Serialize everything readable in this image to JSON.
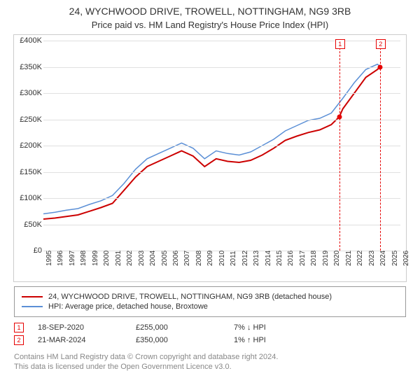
{
  "title_line1": "24, WYCHWOOD DRIVE, TROWELL, NOTTINGHAM, NG9 3RB",
  "title_line2": "Price paid vs. HM Land Registry's House Price Index (HPI)",
  "chart": {
    "type": "line",
    "background_color": "#ffffff",
    "grid_color": "#e0e0e0",
    "border_color": "#cccccc",
    "x_axis": {
      "min": 1995,
      "max": 2026,
      "tick_step": 1,
      "label_fontsize": 10,
      "label_rotation": -90
    },
    "y_axis": {
      "min": 0,
      "max": 400000,
      "tick_step": 50000,
      "tick_labels": [
        "£0",
        "£50K",
        "£100K",
        "£150K",
        "£200K",
        "£250K",
        "£300K",
        "£350K",
        "£400K"
      ],
      "label_fontsize": 11
    },
    "series": [
      {
        "name": "24, WYCHWOOD DRIVE, TROWELL, NOTTINGHAM, NG9 3RB (detached house)",
        "color": "#cc0000",
        "line_width": 2,
        "data": [
          [
            1995,
            60000
          ],
          [
            1996,
            62000
          ],
          [
            1997,
            65000
          ],
          [
            1998,
            68000
          ],
          [
            1999,
            75000
          ],
          [
            2000,
            82000
          ],
          [
            2001,
            90000
          ],
          [
            2002,
            115000
          ],
          [
            2003,
            140000
          ],
          [
            2004,
            160000
          ],
          [
            2005,
            170000
          ],
          [
            2006,
            180000
          ],
          [
            2007,
            190000
          ],
          [
            2008,
            180000
          ],
          [
            2009,
            160000
          ],
          [
            2010,
            175000
          ],
          [
            2011,
            170000
          ],
          [
            2012,
            168000
          ],
          [
            2013,
            172000
          ],
          [
            2014,
            182000
          ],
          [
            2015,
            195000
          ],
          [
            2016,
            210000
          ],
          [
            2017,
            218000
          ],
          [
            2018,
            225000
          ],
          [
            2019,
            230000
          ],
          [
            2020,
            240000
          ],
          [
            2020.7,
            255000
          ],
          [
            2021,
            270000
          ],
          [
            2022,
            300000
          ],
          [
            2023,
            330000
          ],
          [
            2024,
            345000
          ],
          [
            2024.22,
            350000
          ]
        ]
      },
      {
        "name": "HPI: Average price, detached house, Broxtowe",
        "color": "#5b8fd6",
        "line_width": 1.5,
        "data": [
          [
            1995,
            70000
          ],
          [
            1996,
            73000
          ],
          [
            1997,
            77000
          ],
          [
            1998,
            80000
          ],
          [
            1999,
            88000
          ],
          [
            2000,
            95000
          ],
          [
            2001,
            105000
          ],
          [
            2002,
            128000
          ],
          [
            2003,
            155000
          ],
          [
            2004,
            175000
          ],
          [
            2005,
            185000
          ],
          [
            2006,
            195000
          ],
          [
            2007,
            205000
          ],
          [
            2008,
            195000
          ],
          [
            2009,
            175000
          ],
          [
            2010,
            190000
          ],
          [
            2011,
            185000
          ],
          [
            2012,
            182000
          ],
          [
            2013,
            188000
          ],
          [
            2014,
            200000
          ],
          [
            2015,
            212000
          ],
          [
            2016,
            228000
          ],
          [
            2017,
            238000
          ],
          [
            2018,
            248000
          ],
          [
            2019,
            252000
          ],
          [
            2020,
            262000
          ],
          [
            2021,
            290000
          ],
          [
            2022,
            320000
          ],
          [
            2023,
            345000
          ],
          [
            2024,
            355000
          ],
          [
            2024.3,
            350000
          ]
        ]
      }
    ],
    "markers": [
      {
        "num": "1",
        "x": 2020.7,
        "y": 255000
      },
      {
        "num": "2",
        "x": 2024.22,
        "y": 350000
      }
    ]
  },
  "legend": {
    "items": [
      {
        "color": "#cc0000",
        "label": "24, WYCHWOOD DRIVE, TROWELL, NOTTINGHAM, NG9 3RB (detached house)"
      },
      {
        "color": "#5b8fd6",
        "label": "HPI: Average price, detached house, Broxtowe"
      }
    ]
  },
  "info_rows": [
    {
      "num": "1",
      "date": "18-SEP-2020",
      "price": "£255,000",
      "delta": "7% ↓ HPI"
    },
    {
      "num": "2",
      "date": "21-MAR-2024",
      "price": "£350,000",
      "delta": "1% ↑ HPI"
    }
  ],
  "footer": {
    "line1": "Contains HM Land Registry data © Crown copyright and database right 2024.",
    "line2": "This data is licensed under the Open Government Licence v3.0."
  }
}
